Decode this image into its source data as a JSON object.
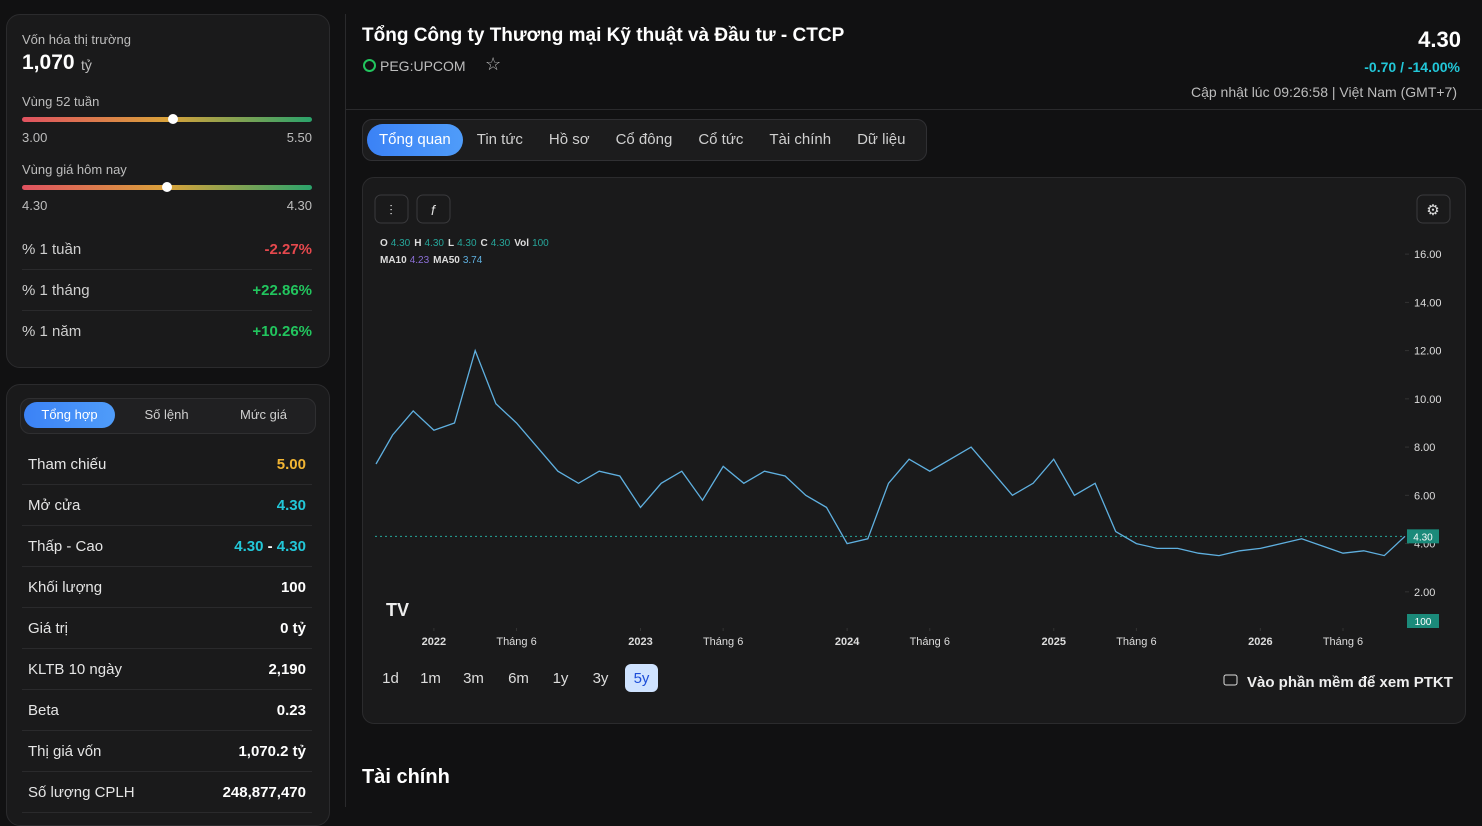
{
  "sidebar": {
    "market_cap": {
      "label": "Vốn hóa thị trường",
      "value": "1,070",
      "unit": "tỷ"
    },
    "range_52w": {
      "label": "Vùng 52 tuần",
      "low": {
        "value": 3,
        "label": "3.00"
      },
      "high": {
        "value": 5.5,
        "label": "5.50"
      }
    },
    "range_today": {
      "label": "Vùng giá hôm nay",
      "low": {
        "value": 4.3,
        "label": "4.30"
      },
      "high": {
        "value": 4.3,
        "label": "4.30"
      }
    },
    "performance": [
      {
        "label": "% 1 tuần",
        "value": "-2.27%",
        "color": "#e5484d"
      },
      {
        "label": "% 1 tháng",
        "value": "+22.86%",
        "color": "#22c55e"
      },
      {
        "label": "% 1 năm",
        "value": "+10.26%",
        "color": "#22c55e"
      }
    ],
    "tabs": [
      "Tổng hợp",
      "Số lệnh",
      "Mức giá"
    ],
    "stats": [
      {
        "label": "Tham chiếu",
        "value": "5.00",
        "color": "#f2b533"
      },
      {
        "label": "Mở cửa",
        "value": "4.30",
        "color": "#22c7d8"
      },
      {
        "label": "Thấp - Cao",
        "value": "4.30",
        "value2": "4.30",
        "color": "#22c7d8"
      },
      {
        "label": "Khối lượng",
        "value": "100",
        "color": "#ffffff"
      },
      {
        "label": "Giá trị",
        "value": "0 tỷ",
        "color": "#ffffff"
      },
      {
        "label": "KLTB 10 ngày",
        "value": "2,190",
        "color": "#ffffff"
      },
      {
        "label": "Beta",
        "value": "0.23",
        "color": "#ffffff"
      },
      {
        "label": "Thị giá vốn",
        "value": "1,070.2 tỷ",
        "color": "#ffffff"
      },
      {
        "label": "Số lượng CPLH",
        "value": "248,877,470",
        "color": "#ffffff"
      }
    ]
  },
  "header": {
    "title": "Tổng Công ty Thương mại Kỹ thuật và Đầu tư - CTCP",
    "ticker": "PEG:UPCOM",
    "price": {
      "value": 4.3,
      "label": "4.30"
    },
    "change": "-0.70 / -14.00%",
    "updated": "Cập nhật lúc 09:26:58 | Việt Nam (GMT+7)"
  },
  "nav": [
    "Tổng quan",
    "Tin tức",
    "Hồ sơ",
    "Cổ đông",
    "Cổ tức",
    "Tài chính",
    "Dữ liệu"
  ],
  "chart_data": {
    "type": "line",
    "legend_ohlc": [
      {
        "label": "O",
        "value": "4.30"
      },
      {
        "label": "H",
        "value": "4.30"
      },
      {
        "label": "L",
        "value": "4.30"
      },
      {
        "label": "C",
        "value": "4.30"
      },
      {
        "label": "Vol",
        "value": "100"
      }
    ],
    "legend_ma": [
      {
        "label": "MA10",
        "value": "4.23",
        "color": "#8b6fd6"
      },
      {
        "label": "MA50",
        "value": "3.74",
        "color": "#5fb0e0"
      }
    ],
    "x": [
      2021.72,
      2021.8,
      2021.9,
      2022.0,
      2022.1,
      2022.2,
      2022.3,
      2022.4,
      2022.5,
      2022.6,
      2022.7,
      2022.8,
      2022.9,
      2023.0,
      2023.1,
      2023.2,
      2023.3,
      2023.4,
      2023.5,
      2023.6,
      2023.7,
      2023.8,
      2023.9,
      2024.0,
      2024.1,
      2024.2,
      2024.3,
      2024.4,
      2024.5,
      2024.6,
      2024.7,
      2024.8,
      2024.9,
      2025.0,
      2025.1,
      2025.2,
      2025.3,
      2025.4,
      2025.5,
      2025.6,
      2025.7,
      2025.8,
      2025.9,
      2026.0,
      2026.1,
      2026.2,
      2026.3,
      2026.4,
      2026.5,
      2026.6,
      2026.7
    ],
    "values": [
      7.3,
      8.5,
      9.5,
      8.7,
      9.0,
      12.0,
      9.8,
      9.0,
      8.0,
      7.0,
      6.5,
      7.0,
      6.8,
      5.5,
      6.5,
      7.0,
      5.8,
      7.2,
      6.5,
      7.0,
      6.8,
      6.0,
      5.5,
      4.0,
      4.2,
      6.5,
      7.5,
      7.0,
      7.5,
      8.0,
      7.0,
      6.0,
      6.5,
      7.5,
      6.0,
      6.5,
      4.5,
      4.0,
      3.8,
      3.8,
      3.6,
      3.5,
      3.7,
      3.8,
      4.0,
      4.2,
      3.9,
      3.6,
      3.7,
      3.5,
      4.3
    ],
    "color": "#5fb0e0",
    "xlim": [
      2021.715,
      2026.7
    ],
    "xticks": [
      {
        "value": 2022,
        "label": "2022"
      },
      {
        "value": 2022.4,
        "label": "Tháng 6"
      },
      {
        "value": 2023,
        "label": "2023"
      },
      {
        "value": 2023.4,
        "label": "Tháng 6"
      },
      {
        "value": 2024,
        "label": "2024"
      },
      {
        "value": 2024.4,
        "label": "Tháng 6"
      },
      {
        "value": 2025,
        "label": "2025"
      },
      {
        "value": 2025.4,
        "label": "Tháng 6"
      },
      {
        "value": 2026,
        "label": "2026"
      },
      {
        "value": 2026.4,
        "label": "Tháng 6"
      }
    ],
    "ylim": [
      0.5,
      17
    ],
    "yticks": [
      {
        "value": 2,
        "label": "2.00"
      },
      {
        "value": 4,
        "label": "4.00"
      },
      {
        "value": 6,
        "label": "6.00"
      },
      {
        "value": 8,
        "label": "8.00"
      },
      {
        "value": 10,
        "label": "10.00"
      },
      {
        "value": 12,
        "label": "12.00"
      },
      {
        "value": 14,
        "label": "14.00"
      },
      {
        "value": 16,
        "label": "16.00"
      }
    ],
    "last_price": {
      "value": 4.3,
      "label": "4.30"
    },
    "last_volume": "100",
    "ranges": [
      "1d",
      "1m",
      "3m",
      "6m",
      "1y",
      "3y",
      "5y"
    ],
    "active_range": 6,
    "link": "Vào phần mềm để xem PTKT"
  },
  "section_title": "Tài chính"
}
